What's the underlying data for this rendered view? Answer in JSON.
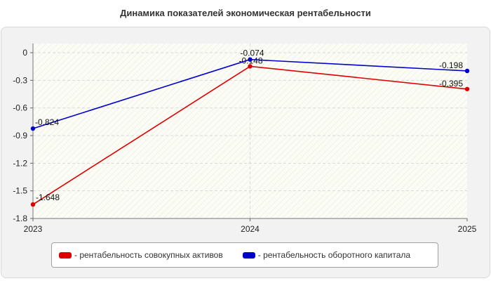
{
  "chart_data": {
    "type": "line",
    "title": "Динамика показателей экономическая рентабельности",
    "xlabel": "",
    "ylabel": "",
    "categories": [
      "2023",
      "2024",
      "2025"
    ],
    "ylim": [
      -1.8,
      0.1
    ],
    "yticks": [
      0,
      -0.3,
      -0.6,
      -0.9,
      -1.2,
      -1.5,
      -1.8
    ],
    "ytick_labels": [
      "0",
      "-0.3",
      "-0.6",
      "-0.9",
      "-1.2",
      "-1.5",
      "-1.8"
    ],
    "grid": true,
    "legend_position": "bottom",
    "series": [
      {
        "name": "рентабельность совокупных активов",
        "legend_label": "- рентабельность совокупных активов",
        "color": "#dd0000",
        "values": [
          -1.648,
          -0.148,
          -0.395
        ],
        "labels": [
          "-1.648",
          "-0.148",
          "-0.395"
        ]
      },
      {
        "name": "рентабельность оборотного капитала",
        "legend_label": "- рентабельность оборотного капитала",
        "color": "#0000cc",
        "values": [
          -0.824,
          -0.074,
          -0.198
        ],
        "labels": [
          "-0.824",
          "-0.074",
          "-0.198"
        ]
      }
    ]
  }
}
